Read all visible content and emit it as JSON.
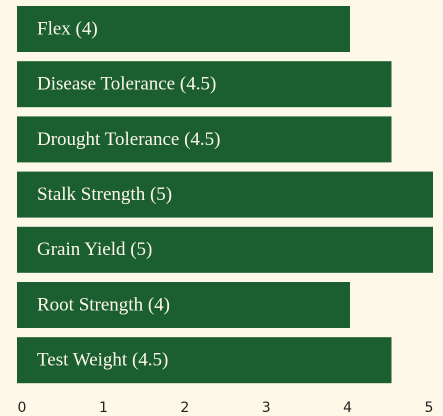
{
  "chart_data": {
    "type": "bar",
    "orientation": "horizontal",
    "categories": [
      "Flex (4)",
      "Disease Tolerance (4.5)",
      "Drought Tolerance (4.5)",
      "Stalk Strength (5)",
      "Grain Yield (5)",
      "Root Strength (4)",
      "Test Weight (4.5)"
    ],
    "values": [
      4,
      4.5,
      4.5,
      5,
      5,
      4,
      4.5
    ],
    "color": "#1b5e2f",
    "xlim": [
      0,
      5
    ],
    "xticks": [
      0,
      1,
      2,
      3,
      4,
      5
    ],
    "grid": false
  }
}
